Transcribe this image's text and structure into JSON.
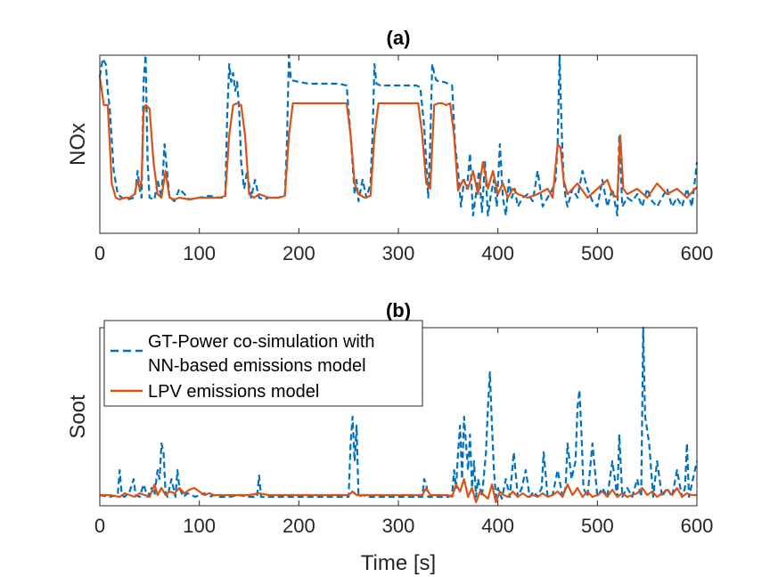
{
  "chart_data": [
    {
      "type": "line",
      "title": "(a)",
      "xlabel": "",
      "ylabel": "NOx",
      "xlim": [
        0,
        600
      ],
      "ylim": [
        0,
        1
      ],
      "xticks": [
        0,
        100,
        200,
        300,
        400,
        500,
        600
      ],
      "yticks_visible": false,
      "series": [
        {
          "name": "GT-Power co-simulation with NN-based emissions model",
          "color": "#0072BD",
          "style": "dashed",
          "x": [
            0,
            3,
            6,
            8,
            10,
            14,
            18,
            22,
            28,
            35,
            38,
            40,
            42,
            44,
            46,
            48,
            50,
            55,
            58,
            62,
            65,
            70,
            75,
            80,
            90,
            100,
            110,
            120,
            126,
            128,
            130,
            132,
            134,
            136,
            138,
            140,
            142,
            145,
            148,
            152,
            156,
            160,
            165,
            170,
            180,
            186,
            188,
            190,
            192,
            200,
            210,
            220,
            230,
            240,
            248,
            252,
            256,
            258,
            260,
            264,
            268,
            272,
            274,
            276,
            278,
            282,
            290,
            300,
            310,
            318,
            322,
            326,
            330,
            332,
            334,
            336,
            338,
            342,
            346,
            350,
            354,
            357,
            360,
            363,
            366,
            369,
            372,
            375,
            378,
            381,
            384,
            387,
            390,
            393,
            396,
            399,
            402,
            405,
            408,
            411,
            414,
            417,
            420,
            425,
            430,
            435,
            440,
            445,
            450,
            455,
            458,
            460,
            462,
            464,
            466,
            468,
            470,
            475,
            480,
            485,
            490,
            495,
            500,
            505,
            510,
            515,
            520,
            522,
            525,
            530,
            535,
            540,
            545,
            550,
            555,
            560,
            565,
            570,
            575,
            580,
            585,
            590,
            595,
            600
          ],
          "y": [
            0.88,
            0.98,
            0.95,
            0.8,
            0.7,
            0.35,
            0.22,
            0.2,
            0.19,
            0.2,
            0.35,
            0.25,
            0.2,
            0.85,
            1.0,
            0.4,
            0.2,
            0.19,
            0.3,
            0.2,
            0.5,
            0.2,
            0.18,
            0.25,
            0.19,
            0.2,
            0.21,
            0.2,
            0.2,
            0.65,
            0.95,
            0.85,
            0.9,
            0.8,
            0.85,
            0.7,
            0.4,
            0.25,
            0.35,
            0.2,
            0.3,
            0.2,
            0.19,
            0.2,
            0.2,
            0.22,
            0.5,
            1.0,
            0.86,
            0.85,
            0.84,
            0.84,
            0.84,
            0.84,
            0.83,
            0.55,
            0.22,
            0.3,
            0.18,
            0.3,
            0.2,
            0.28,
            0.55,
            0.95,
            0.84,
            0.83,
            0.83,
            0.83,
            0.83,
            0.83,
            0.82,
            0.6,
            0.2,
            0.5,
            0.95,
            0.9,
            0.86,
            0.85,
            0.85,
            0.84,
            0.83,
            0.5,
            0.35,
            0.15,
            0.3,
            0.25,
            0.45,
            0.1,
            0.22,
            0.35,
            0.12,
            0.4,
            0.1,
            0.22,
            0.3,
            0.15,
            0.5,
            0.2,
            0.1,
            0.3,
            0.2,
            0.25,
            0.15,
            0.2,
            0.22,
            0.18,
            0.35,
            0.15,
            0.2,
            0.25,
            0.3,
            0.5,
            1.0,
            0.6,
            0.3,
            0.2,
            0.15,
            0.25,
            0.2,
            0.35,
            0.25,
            0.18,
            0.15,
            0.3,
            0.15,
            0.25,
            0.1,
            0.55,
            0.15,
            0.2,
            0.18,
            0.22,
            0.15,
            0.25,
            0.18,
            0.15,
            0.2,
            0.25,
            0.15,
            0.2,
            0.15,
            0.25,
            0.15,
            0.4
          ]
        },
        {
          "name": "LPV emissions model",
          "color": "#D95319",
          "style": "solid",
          "x": [
            0,
            4,
            8,
            10,
            12,
            16,
            20,
            25,
            30,
            35,
            38,
            40,
            42,
            44,
            46,
            50,
            54,
            58,
            62,
            66,
            70,
            75,
            80,
            90,
            100,
            110,
            120,
            126,
            130,
            134,
            138,
            142,
            146,
            150,
            155,
            160,
            170,
            180,
            186,
            190,
            194,
            200,
            220,
            240,
            248,
            252,
            256,
            260,
            266,
            272,
            276,
            280,
            290,
            310,
            320,
            324,
            328,
            332,
            336,
            340,
            344,
            348,
            352,
            356,
            360,
            365,
            370,
            375,
            380,
            385,
            390,
            395,
            400,
            405,
            410,
            415,
            420,
            430,
            440,
            450,
            455,
            460,
            463,
            466,
            470,
            475,
            480,
            490,
            500,
            510,
            515,
            520,
            523,
            526,
            530,
            540,
            550,
            560,
            570,
            580,
            590,
            600
          ],
          "y": [
            0.88,
            0.72,
            0.72,
            0.5,
            0.28,
            0.2,
            0.19,
            0.2,
            0.2,
            0.22,
            0.3,
            0.25,
            0.3,
            0.68,
            0.72,
            0.7,
            0.4,
            0.22,
            0.2,
            0.35,
            0.2,
            0.19,
            0.2,
            0.19,
            0.2,
            0.2,
            0.2,
            0.21,
            0.55,
            0.72,
            0.73,
            0.72,
            0.55,
            0.22,
            0.2,
            0.22,
            0.2,
            0.2,
            0.21,
            0.55,
            0.73,
            0.73,
            0.73,
            0.73,
            0.73,
            0.55,
            0.28,
            0.22,
            0.2,
            0.21,
            0.55,
            0.73,
            0.73,
            0.73,
            0.73,
            0.55,
            0.28,
            0.25,
            0.72,
            0.73,
            0.73,
            0.72,
            0.73,
            0.55,
            0.24,
            0.3,
            0.25,
            0.35,
            0.22,
            0.4,
            0.25,
            0.35,
            0.22,
            0.28,
            0.2,
            0.25,
            0.22,
            0.2,
            0.22,
            0.25,
            0.2,
            0.5,
            0.48,
            0.3,
            0.22,
            0.25,
            0.28,
            0.2,
            0.25,
            0.3,
            0.22,
            0.2,
            0.55,
            0.25,
            0.22,
            0.25,
            0.2,
            0.28,
            0.22,
            0.25,
            0.2,
            0.26
          ]
        }
      ]
    },
    {
      "type": "line",
      "title": "(b)",
      "xlabel": "Time [s]",
      "ylabel": "Soot",
      "xlim": [
        0,
        600
      ],
      "ylim": [
        0,
        1
      ],
      "xticks": [
        0,
        100,
        200,
        300,
        400,
        500,
        600
      ],
      "yticks_visible": false,
      "legend": {
        "placement": "top-left",
        "entries": [
          "GT-Power co-simulation with",
          "NN-based emissions model",
          "LPV emissions model"
        ]
      },
      "series": [
        {
          "name": "GT-Power co-simulation with NN-based emissions model",
          "color": "#0072BD",
          "style": "dashed",
          "x": [
            0,
            10,
            18,
            20,
            22,
            25,
            30,
            34,
            36,
            40,
            44,
            48,
            52,
            55,
            58,
            60,
            62,
            64,
            66,
            68,
            72,
            76,
            78,
            80,
            84,
            88,
            92,
            96,
            100,
            105,
            110,
            115,
            120,
            130,
            140,
            150,
            158,
            160,
            162,
            170,
            180,
            200,
            220,
            240,
            250,
            252,
            254,
            256,
            258,
            260,
            264,
            270,
            280,
            300,
            320,
            324,
            326,
            328,
            330,
            340,
            350,
            354,
            356,
            358,
            360,
            362,
            364,
            366,
            368,
            370,
            372,
            374,
            376,
            378,
            380,
            384,
            388,
            390,
            392,
            394,
            396,
            398,
            400,
            404,
            408,
            412,
            416,
            420,
            424,
            428,
            432,
            436,
            440,
            444,
            446,
            450,
            455,
            460,
            465,
            468,
            470,
            474,
            478,
            480,
            482,
            484,
            486,
            490,
            495,
            500,
            505,
            510,
            515,
            520,
            522,
            525,
            530,
            535,
            540,
            544,
            546,
            548,
            552,
            556,
            560,
            565,
            570,
            575,
            580,
            585,
            588,
            590,
            592,
            596,
            600
          ],
          "y": [
            0.06,
            0.05,
            0.06,
            0.2,
            0.06,
            0.05,
            0.08,
            0.15,
            0.06,
            0.05,
            0.12,
            0.05,
            0.1,
            0.06,
            0.2,
            0.15,
            0.35,
            0.3,
            0.08,
            0.05,
            0.15,
            0.05,
            0.2,
            0.1,
            0.05,
            0.07,
            0.06,
            0.05,
            0.06,
            0.07,
            0.05,
            0.06,
            0.05,
            0.05,
            0.06,
            0.05,
            0.05,
            0.17,
            0.05,
            0.05,
            0.05,
            0.05,
            0.05,
            0.05,
            0.05,
            0.35,
            0.5,
            0.25,
            0.45,
            0.05,
            0.06,
            0.05,
            0.05,
            0.05,
            0.05,
            0.05,
            0.15,
            0.12,
            0.05,
            0.05,
            0.05,
            0.06,
            0.2,
            0.1,
            0.3,
            0.45,
            0.15,
            0.5,
            0.35,
            0.2,
            0.4,
            0.1,
            0.25,
            0.05,
            0.15,
            0.05,
            0.3,
            0.55,
            0.75,
            0.45,
            0.2,
            0.05,
            0.1,
            0.04,
            0.15,
            0.05,
            0.3,
            0.05,
            0.1,
            0.2,
            0.05,
            0.08,
            0.05,
            0.1,
            0.3,
            0.05,
            0.06,
            0.2,
            0.05,
            0.1,
            0.35,
            0.15,
            0.25,
            0.55,
            0.65,
            0.4,
            0.1,
            0.05,
            0.35,
            0.05,
            0.1,
            0.05,
            0.25,
            0.05,
            0.4,
            0.05,
            0.1,
            0.05,
            0.15,
            0.05,
            1.0,
            0.5,
            0.35,
            0.05,
            0.25,
            0.05,
            0.1,
            0.05,
            0.2,
            0.05,
            0.1,
            0.35,
            0.05,
            0.15,
            0.25
          ]
        },
        {
          "name": "LPV emissions model",
          "color": "#D95319",
          "style": "solid",
          "x": [
            0,
            10,
            20,
            25,
            30,
            35,
            40,
            45,
            50,
            55,
            58,
            62,
            66,
            70,
            75,
            80,
            85,
            90,
            95,
            100,
            105,
            110,
            115,
            120,
            130,
            140,
            150,
            160,
            170,
            180,
            200,
            220,
            240,
            250,
            254,
            258,
            262,
            270,
            300,
            320,
            324,
            328,
            332,
            340,
            350,
            354,
            358,
            362,
            366,
            370,
            374,
            378,
            382,
            386,
            390,
            394,
            398,
            402,
            406,
            410,
            415,
            420,
            425,
            430,
            435,
            440,
            445,
            450,
            455,
            460,
            465,
            470,
            475,
            480,
            485,
            490,
            495,
            500,
            505,
            510,
            515,
            520,
            525,
            530,
            535,
            540,
            545,
            550,
            555,
            560,
            565,
            570,
            575,
            580,
            585,
            590,
            595,
            600
          ],
          "y": [
            0.06,
            0.06,
            0.05,
            0.07,
            0.06,
            0.05,
            0.07,
            0.06,
            0.05,
            0.12,
            0.06,
            0.1,
            0.06,
            0.08,
            0.07,
            0.1,
            0.07,
            0.09,
            0.1,
            0.08,
            0.06,
            0.07,
            0.06,
            0.06,
            0.06,
            0.06,
            0.06,
            0.07,
            0.06,
            0.06,
            0.06,
            0.06,
            0.06,
            0.06,
            0.08,
            0.06,
            0.06,
            0.06,
            0.06,
            0.06,
            0.06,
            0.1,
            0.06,
            0.06,
            0.06,
            0.05,
            0.12,
            0.08,
            0.15,
            0.05,
            0.1,
            0.02,
            0.08,
            0.06,
            0.04,
            0.12,
            0.02,
            0.08,
            0.06,
            0.05,
            0.08,
            0.05,
            0.07,
            0.05,
            0.06,
            0.05,
            0.07,
            0.05,
            0.06,
            0.08,
            0.05,
            0.12,
            0.06,
            0.1,
            0.05,
            0.08,
            0.05,
            0.06,
            0.08,
            0.05,
            0.09,
            0.05,
            0.07,
            0.05,
            0.06,
            0.07,
            0.1,
            0.06,
            0.08,
            0.05,
            0.07,
            0.09,
            0.06,
            0.1,
            0.05,
            0.07,
            0.06,
            0.06
          ]
        }
      ]
    }
  ]
}
